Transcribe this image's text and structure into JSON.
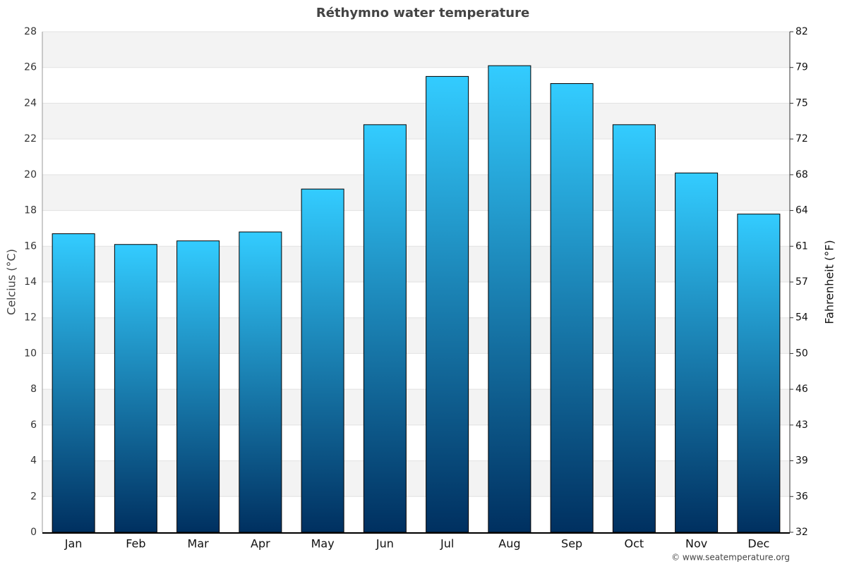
{
  "chart_data": {
    "type": "bar",
    "title": "Réthymno water temperature",
    "y_label": "Celcius (°C)",
    "y2_label": "Fahrenheit (°F)",
    "credit": "© www.seatemperature.org",
    "categories": [
      "Jan",
      "Feb",
      "Mar",
      "Apr",
      "May",
      "Jun",
      "Jul",
      "Aug",
      "Sep",
      "Oct",
      "Nov",
      "Dec"
    ],
    "values": [
      16.7,
      16.1,
      16.3,
      16.8,
      19.2,
      22.8,
      25.5,
      26.1,
      25.1,
      22.8,
      20.1,
      17.8
    ],
    "color": [
      "#33ccff",
      "#003060"
    ],
    "ylim": [
      0,
      28
    ],
    "yticks": [
      0,
      2,
      4,
      6,
      8,
      10,
      12,
      14,
      16,
      18,
      20,
      22,
      24,
      26,
      28
    ],
    "y2lim": [
      32,
      82.4
    ],
    "y2ticks": [
      32,
      {
        "value": 35.6,
        "label": "36"
      },
      {
        "value": 39.2,
        "label": "39"
      },
      {
        "value": 42.8,
        "label": "43"
      },
      {
        "value": 46.4,
        "label": "46"
      },
      50,
      {
        "value": 53.6,
        "label": "54"
      },
      {
        "value": 57.2,
        "label": "57"
      },
      {
        "value": 60.8,
        "label": "61"
      },
      {
        "value": 64.4,
        "label": "64"
      },
      68,
      {
        "value": 71.6,
        "label": "72"
      },
      {
        "value": 75.2,
        "label": "75"
      },
      {
        "value": 78.8,
        "label": "79"
      },
      {
        "value": 82.4,
        "label": "82"
      }
    ],
    "grid": true
  }
}
